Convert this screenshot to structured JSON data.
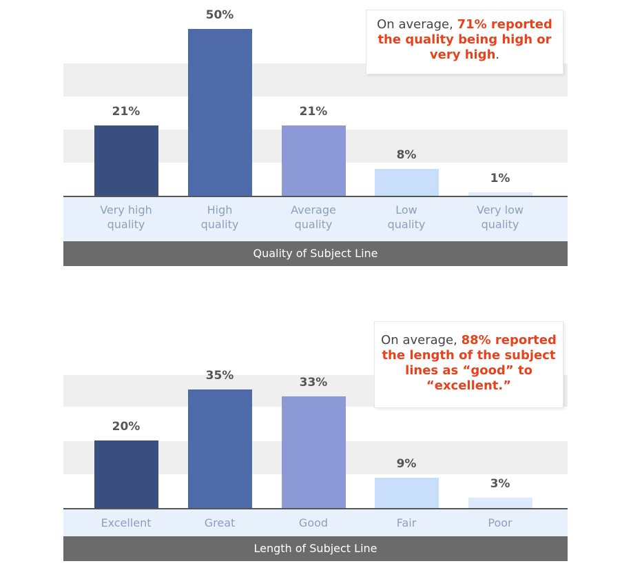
{
  "chart_data": [
    {
      "type": "bar",
      "categories": [
        "Very high\nquality",
        "High\nquality",
        "Average\nquality",
        "Low\nquality",
        "Very low\nquality"
      ],
      "values": [
        21,
        50,
        21,
        8,
        1
      ],
      "value_labels": [
        "21%",
        "50%",
        "21%",
        "8%",
        "1%"
      ],
      "bar_colors": [
        "#3a4e7f",
        "#4e6aa8",
        "#8b9ad7",
        "#c9defa",
        "#ddeafb"
      ],
      "xlabel": "Quality of Subject Line",
      "ylim": [
        0,
        50
      ],
      "grid": false,
      "callout": {
        "prefix": "On average, ",
        "highlight": "71% reported the quality being high or very high",
        "suffix": "."
      }
    },
    {
      "type": "bar",
      "categories": [
        "Excellent",
        "Great",
        "Good",
        "Fair",
        "Poor"
      ],
      "values": [
        20,
        35,
        33,
        9,
        3
      ],
      "value_labels": [
        "20%",
        "35%",
        "33%",
        "9%",
        "3%"
      ],
      "bar_colors": [
        "#3a4e7f",
        "#4e6aa8",
        "#8b9ad7",
        "#c9defa",
        "#ddeafb"
      ],
      "xlabel": "Length of Subject Line",
      "ylim": [
        0,
        35
      ],
      "grid": false,
      "callout": {
        "prefix": "On average, ",
        "highlight": "88% reported the length of the subject lines as “good” to “excellent.”",
        "suffix": ""
      }
    }
  ]
}
